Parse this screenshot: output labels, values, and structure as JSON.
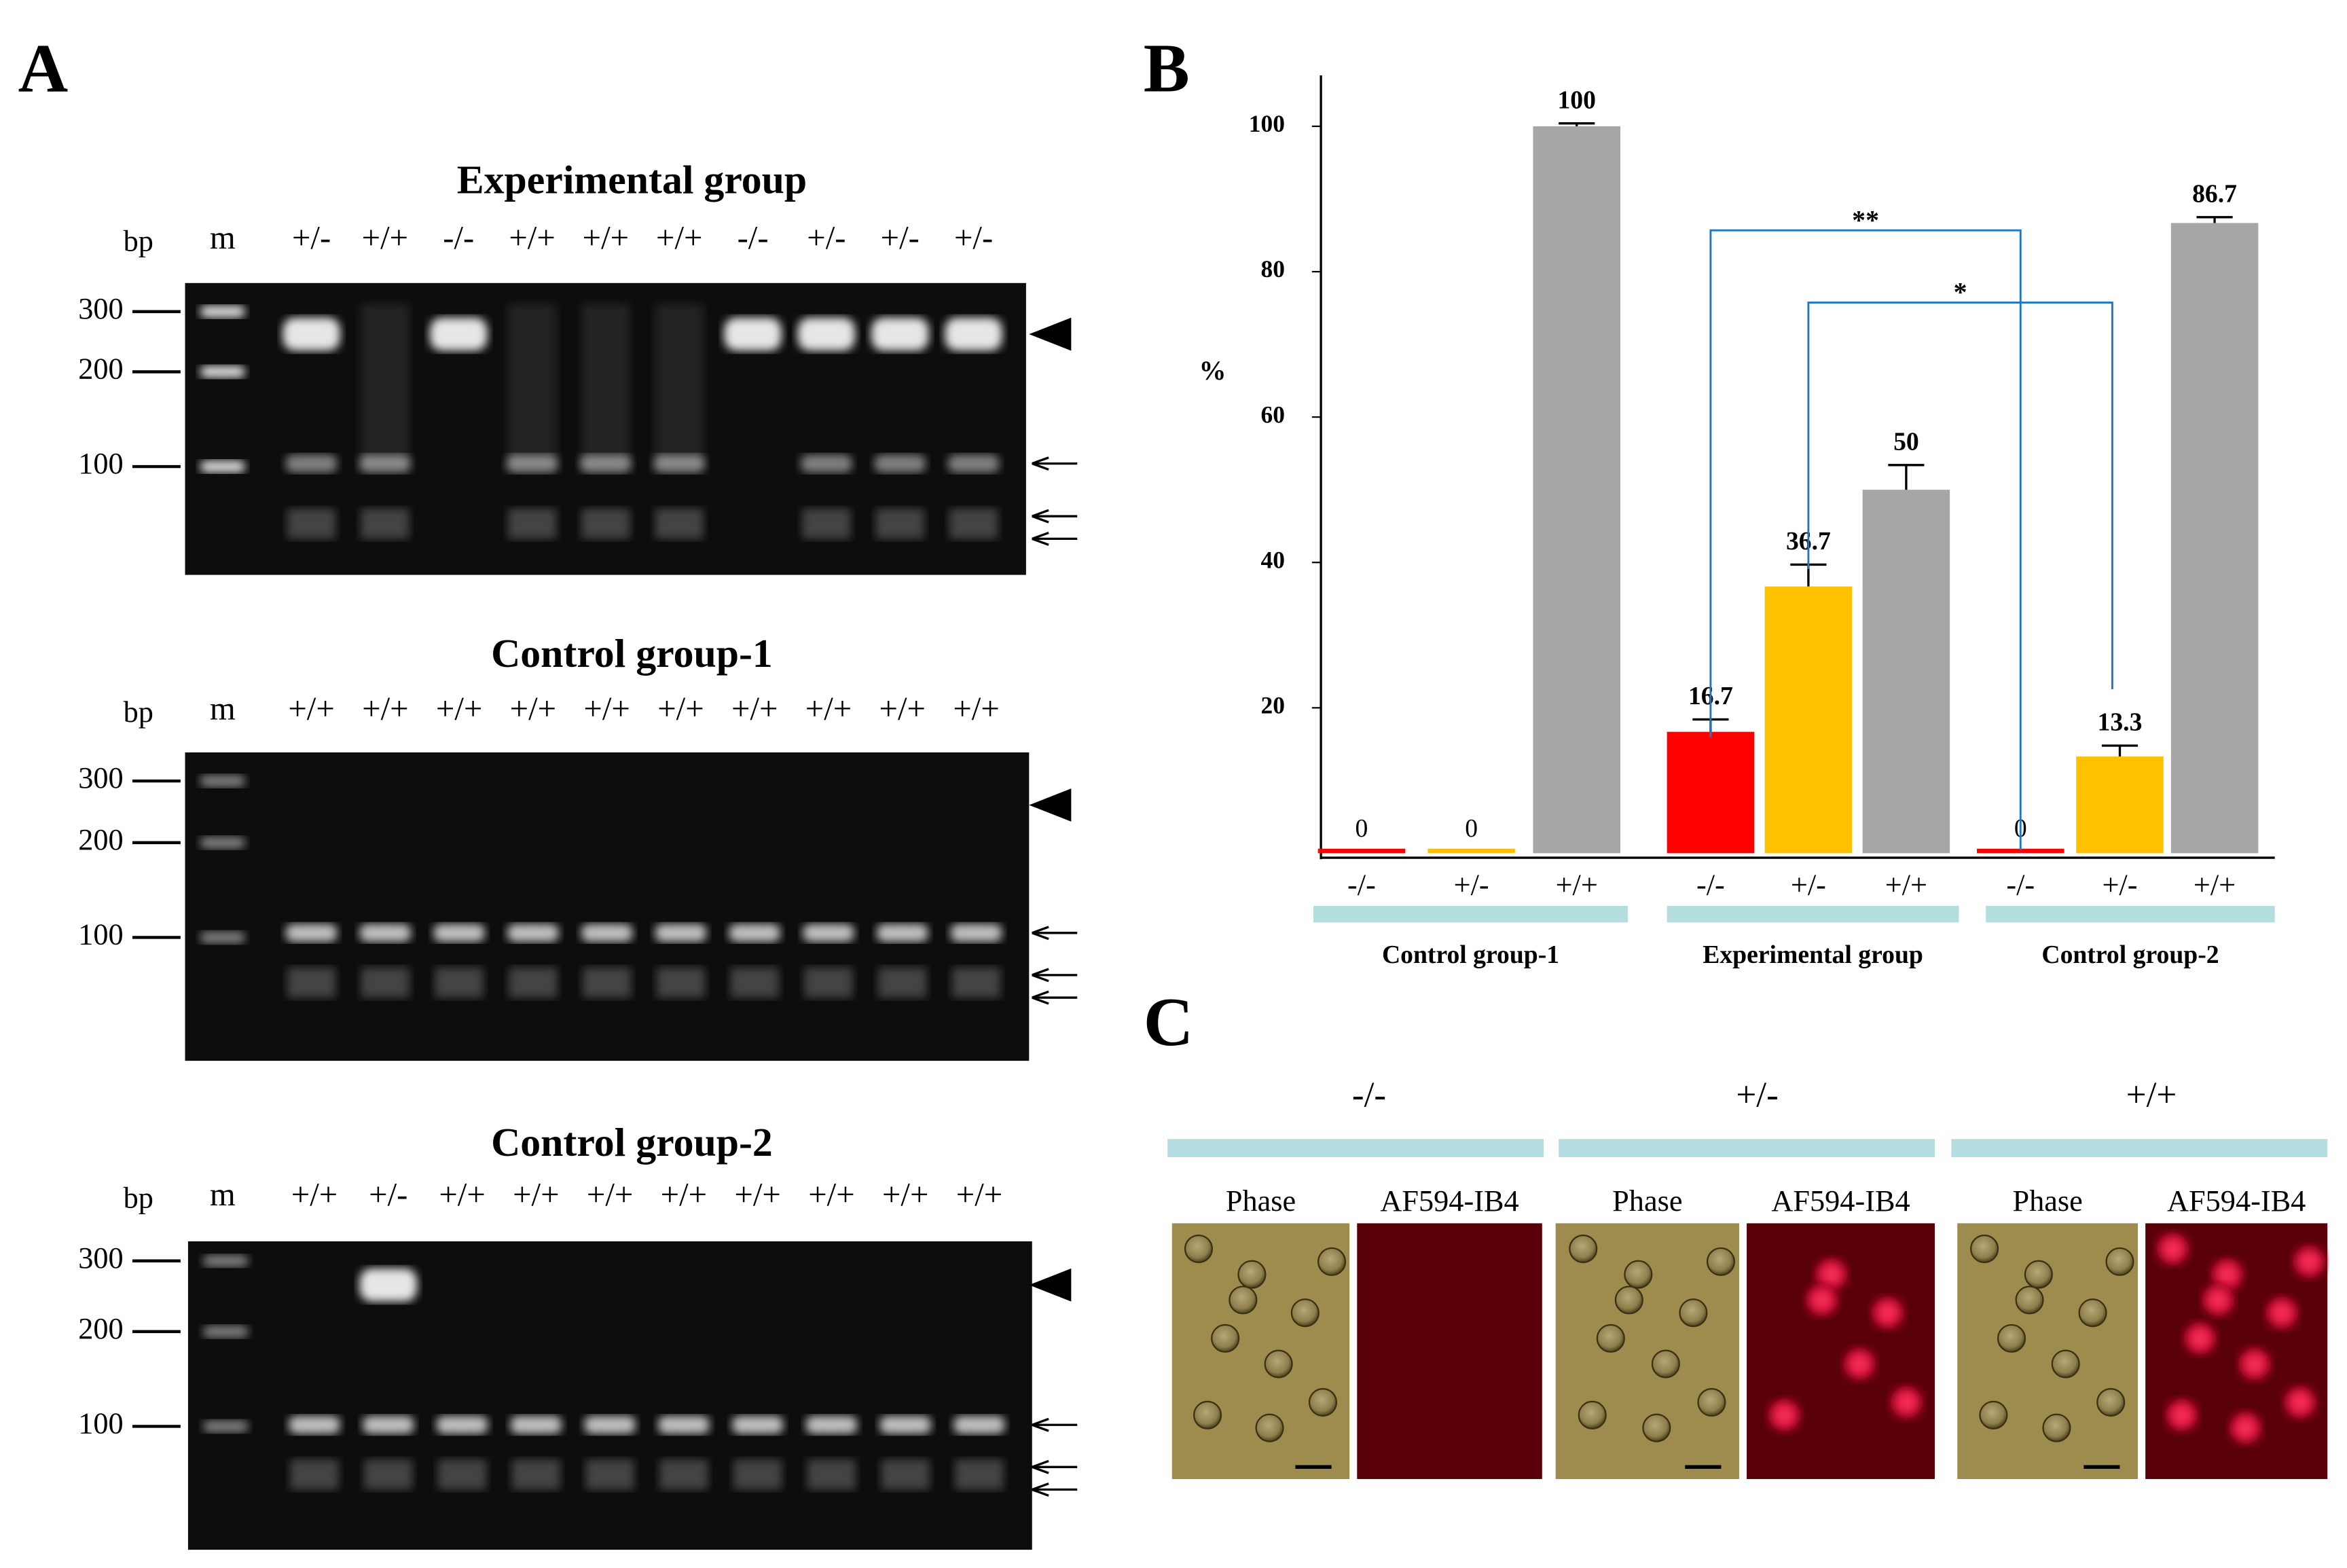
{
  "panels": {
    "a": "A",
    "b": "B",
    "c": "C"
  },
  "gels": [
    {
      "title": "Experimental group",
      "unit": "bp",
      "marker": "m",
      "lanes": [
        "+/-",
        "+/+",
        "-/-",
        "+/+",
        "+/+",
        "+/+",
        "-/-",
        "+/-",
        "+/-",
        "+/-"
      ],
      "sizes": [
        300,
        200,
        100
      ]
    },
    {
      "title": "Control group-1",
      "unit": "bp",
      "marker": "m",
      "lanes": [
        "+/+",
        "+/+",
        "+/+",
        "+/+",
        "+/+",
        "+/+",
        "+/+",
        "+/+",
        "+/+",
        "+/+"
      ],
      "sizes": [
        300,
        200,
        100
      ]
    },
    {
      "title": "Control group-2",
      "unit": "bp",
      "marker": "m",
      "lanes": [
        "+/+",
        "+/-",
        "+/+",
        "+/+",
        "+/+",
        "+/+",
        "+/+",
        "+/+",
        "+/+",
        "+/+"
      ],
      "sizes": [
        300,
        200,
        100
      ]
    }
  ],
  "chart_data": {
    "type": "bar",
    "ylabel": "%",
    "categories": [
      "Control group-1",
      "Experimental group",
      "Control group-2"
    ],
    "series": [
      {
        "name": "-/-",
        "color": "#ff0000",
        "values": [
          0,
          16.7,
          0
        ],
        "errors": [
          null,
          1.7,
          null
        ]
      },
      {
        "name": "+/-",
        "color": "#ffc000",
        "values": [
          0,
          36.7,
          13.3
        ],
        "errors": [
          null,
          3,
          1.5
        ]
      },
      {
        "name": "+/+",
        "color": "#a6a6a6",
        "values": [
          100,
          50,
          86.7
        ],
        "errors": [
          0.4,
          3.4,
          0.8
        ]
      }
    ],
    "ylim": [
      0,
      107
    ],
    "yticks": [
      20,
      40,
      60,
      80,
      100
    ],
    "annotations": [
      "**",
      "*"
    ]
  },
  "micrographs": {
    "genotypes": [
      "-/-",
      "+/-",
      "+/+"
    ],
    "channels": [
      "Phase",
      "AF594-IB4"
    ]
  }
}
